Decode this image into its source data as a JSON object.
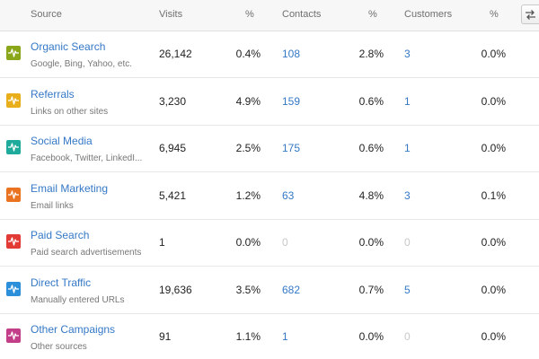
{
  "header": {
    "source": "Source",
    "visits": "Visits",
    "visits_pct": "%",
    "contacts": "Contacts",
    "contacts_pct": "%",
    "customers": "Customers",
    "customers_pct": "%",
    "settings_icon": "swap-arrows-icon"
  },
  "rows": [
    {
      "name": "Organic Search",
      "sub": "Google, Bing, Yahoo, etc.",
      "visits": "26,142",
      "visits_pct": "0.4%",
      "contacts": "108",
      "contacts_pct": "2.8%",
      "customers": "3",
      "customers_pct": "0.0%",
      "color": "#8aa619"
    },
    {
      "name": "Referrals",
      "sub": "Links on other sites",
      "visits": "3,230",
      "visits_pct": "4.9%",
      "contacts": "159",
      "contacts_pct": "0.6%",
      "customers": "1",
      "customers_pct": "0.0%",
      "color": "#e8ae1c"
    },
    {
      "name": "Social Media",
      "sub": "Facebook, Twitter, LinkedI...",
      "visits": "6,945",
      "visits_pct": "2.5%",
      "contacts": "175",
      "contacts_pct": "0.6%",
      "customers": "1",
      "customers_pct": "0.0%",
      "color": "#1fab9c"
    },
    {
      "name": "Email Marketing",
      "sub": "Email links",
      "visits": "5,421",
      "visits_pct": "1.2%",
      "contacts": "63",
      "contacts_pct": "4.8%",
      "customers": "3",
      "customers_pct": "0.1%",
      "color": "#e97320"
    },
    {
      "name": "Paid Search",
      "sub": "Paid search advertisements",
      "visits": "1",
      "visits_pct": "0.0%",
      "contacts": "0",
      "contacts_pct": "0.0%",
      "customers": "0",
      "customers_pct": "0.0%",
      "color": "#e23a35"
    },
    {
      "name": "Direct Traffic",
      "sub": "Manually entered URLs",
      "visits": "19,636",
      "visits_pct": "3.5%",
      "contacts": "682",
      "contacts_pct": "0.7%",
      "customers": "5",
      "customers_pct": "0.0%",
      "color": "#2b8fd9"
    },
    {
      "name": "Other Campaigns",
      "sub": "Other sources",
      "visits": "91",
      "visits_pct": "1.1%",
      "contacts": "1",
      "contacts_pct": "0.0%",
      "customers": "0",
      "customers_pct": "0.0%",
      "color": "#c33e88"
    }
  ]
}
